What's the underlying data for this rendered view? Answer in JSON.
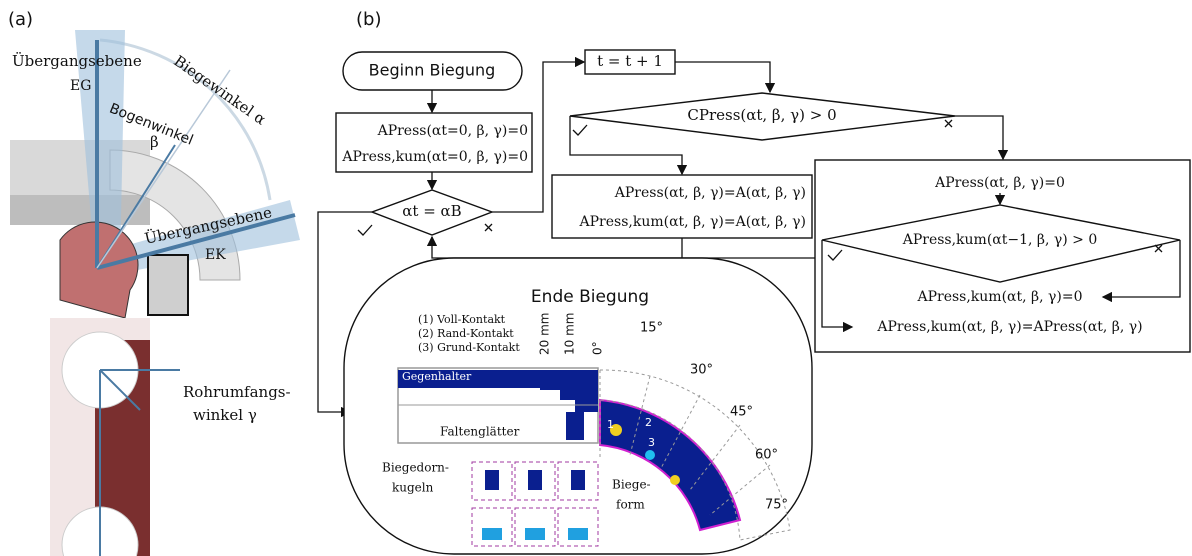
{
  "panel_a": {
    "label": "(a)",
    "upper": {
      "transition_plane_top": "Übergangsebene",
      "eg": "EG",
      "bend_angle": "Biegewinkel α",
      "arc_angle": "Bogenwinkel",
      "beta": "β",
      "transition_plane_right": "Übergangsebene",
      "ek": "EK"
    },
    "lower": {
      "circ_angle_1": "Rohrumfangs-",
      "circ_angle_2": "winkel γ"
    }
  },
  "panel_b": {
    "label": "(b)",
    "start": "Beginn Biegung",
    "init": [
      "APress(αt=0, β, γ)=0",
      "APress,kum(αt=0, β, γ)=0"
    ],
    "condition_end": "αt = αB",
    "increment": "t = t + 1",
    "condition_press": "CPress(αt, β, γ) > 0",
    "press_true": [
      "APress(αt, β, γ)=A(αt, β, γ)",
      "APress,kum(αt, β, γ)=A(αt, β, γ)"
    ],
    "press_false": {
      "reset": "APress(αt, β, γ)=0",
      "condition": "APress,kum(αt−1, β, γ) > 0",
      "keep": "APress,kum(αt, β, γ)=0",
      "assign": "APress,kum(αt, β, γ)=APress(αt, β, γ)"
    },
    "end": {
      "title": "Ende Biegung",
      "legend": [
        "(1) Voll-Kontakt",
        "(2) Rand-Kontakt",
        "(3) Grund-Kontakt"
      ],
      "scale": [
        "20 mm",
        "10 mm",
        "0°"
      ],
      "angles": [
        "15°",
        "30°",
        "45°",
        "60°",
        "75°"
      ],
      "parts": {
        "counter_holder": "Gegenhalter",
        "wiper": "Faltenglätter",
        "mandrel_1": "Biegedorn-",
        "mandrel_2": "kugeln",
        "die_1": "Biege-",
        "die_2": "form"
      },
      "zones": [
        "1",
        "2",
        "3"
      ]
    }
  }
}
